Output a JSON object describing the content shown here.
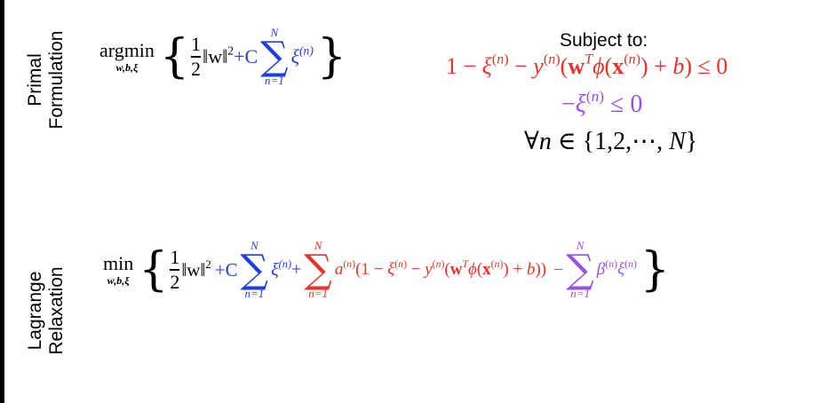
{
  "labels": {
    "primal_line1": "Primal",
    "primal_line2": "Formulation",
    "lagrange_line1": "Lagrange",
    "lagrange_line2": "Relaxation"
  },
  "primal": {
    "operator": "argmin",
    "operator_sub": "w,b,ξ",
    "frac_num": "1",
    "frac_den": "2",
    "norm": "‖w‖",
    "norm_exp": "2",
    "plus_c": "+C",
    "sum_top": "N",
    "sum_bot": "n=1",
    "slack": "ξ",
    "slack_sup": "(n)"
  },
  "constraints": {
    "title": "Subject to:",
    "line1": "1 − ξ(n) − y(n)(wTϕ(x(n)) + b) ≤ 0",
    "line2": "−ξ(n) ≤ 0",
    "line3": "∀n ∈ {1,2,⋯, N}"
  },
  "lagrange": {
    "operator": "min",
    "operator_sub": "w,b,ξ",
    "frac_num": "1",
    "frac_den": "2",
    "norm": "‖w‖",
    "norm_exp": "2",
    "plus_c": "+C",
    "sum1_top": "N",
    "sum1_bot": "n=1",
    "slack": "ξ",
    "slack_sup": "(n)",
    "plus": "+",
    "sum2_top": "N",
    "sum2_bot": "n=1",
    "sum3_top": "N",
    "sum3_bot": "n=1",
    "minus": "−"
  },
  "colors": {
    "blue": "#1f3ee0",
    "red": "#e8322a",
    "purple": "#9a4fe8",
    "black": "#000000"
  }
}
